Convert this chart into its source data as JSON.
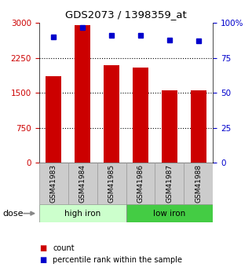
{
  "title": "GDS2073 / 1398359_at",
  "samples": [
    "GSM41983",
    "GSM41984",
    "GSM41985",
    "GSM41986",
    "GSM41987",
    "GSM41988"
  ],
  "bar_values": [
    1850,
    2950,
    2100,
    2050,
    1550,
    1550
  ],
  "percentile_values": [
    90,
    97,
    91,
    91,
    88,
    87
  ],
  "bar_color": "#cc0000",
  "dot_color": "#0000cc",
  "ylim_left": [
    0,
    3000
  ],
  "ylim_right": [
    0,
    100
  ],
  "yticks_left": [
    0,
    750,
    1500,
    2250,
    3000
  ],
  "ytick_labels_left": [
    "0",
    "750",
    "1500",
    "2250",
    "3000"
  ],
  "yticks_right": [
    0,
    25,
    50,
    75,
    100
  ],
  "ytick_labels_right": [
    "0",
    "25",
    "50",
    "75",
    "100%"
  ],
  "grid_values": [
    750,
    1500,
    2250
  ],
  "groups": [
    {
      "label": "high iron",
      "indices": [
        0,
        1,
        2
      ],
      "color": "#ccffcc"
    },
    {
      "label": "low iron",
      "indices": [
        3,
        4,
        5
      ],
      "color": "#44cc44"
    }
  ],
  "dose_label": "dose",
  "legend_items": [
    {
      "label": "count",
      "color": "#cc0000"
    },
    {
      "label": "percentile rank within the sample",
      "color": "#0000cc"
    }
  ],
  "tick_label_color_left": "#cc0000",
  "tick_label_color_right": "#0000cc",
  "label_box_color": "#cccccc",
  "label_box_edge": "#999999"
}
